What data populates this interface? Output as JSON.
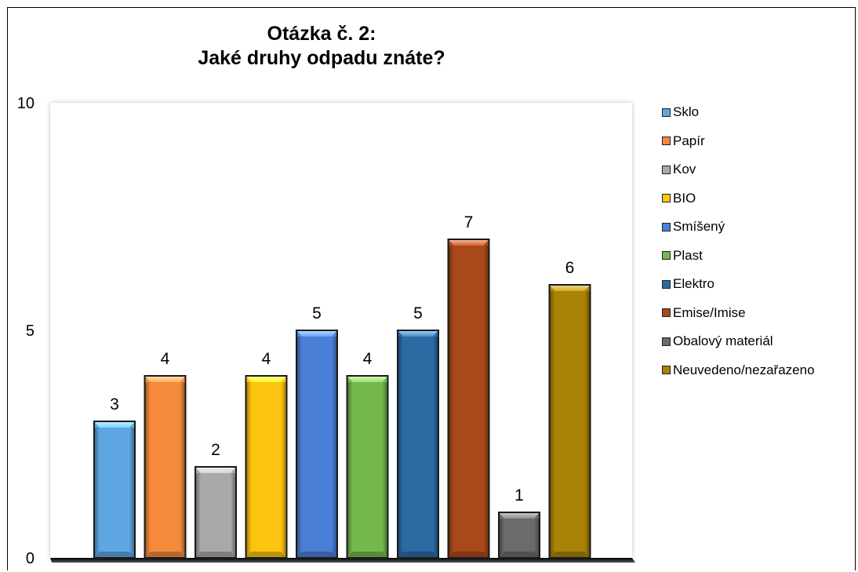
{
  "chart_data": {
    "type": "bar",
    "title": [
      "Otázka č. 2:",
      "Jaké druhy odpadu znáte?"
    ],
    "categories": [
      "Sklo",
      "Papír",
      "Kov",
      "BIO",
      "Smíšený",
      "Plast",
      "Elektro",
      "Emise/Imise",
      "Obalový materiál",
      "Neuvedeno/nezařazeno"
    ],
    "values": [
      3,
      4,
      2,
      4,
      5,
      4,
      5,
      7,
      1,
      6
    ],
    "colors": [
      "#5ea6e2",
      "#f58a3d",
      "#a9a9a9",
      "#fcc40e",
      "#4a7fd8",
      "#74b84d",
      "#2c6aa4",
      "#a9491a",
      "#6b6b6b",
      "#a98306"
    ],
    "ylim": [
      0,
      10
    ],
    "yticks": [
      0,
      5,
      10
    ],
    "xlabel": "",
    "ylabel": "",
    "grid": false,
    "data_labels": true,
    "legend_position": "right"
  }
}
